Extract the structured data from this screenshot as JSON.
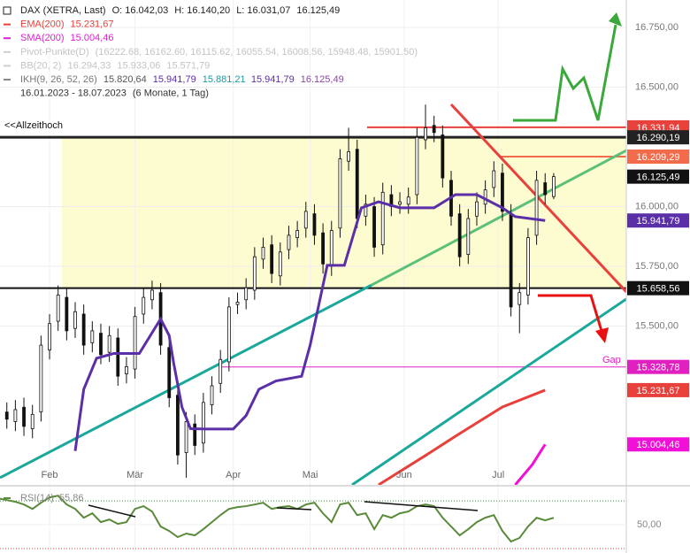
{
  "chart_data": {
    "type": "candlestick",
    "legend_rows": [
      {
        "swatch": "#222222",
        "items": [
          {
            "text": "DAX (XETRA, Last)",
            "color": "#222222"
          },
          {
            "text": "O: 16.042,03",
            "color": "#222222"
          },
          {
            "text": "H: 16.140,20",
            "color": "#222222"
          },
          {
            "text": "L: 16.031,07",
            "color": "#222222"
          },
          {
            "text": "16.125,49",
            "color": "#222222"
          }
        ]
      },
      {
        "swatch": "#e8403a",
        "items": [
          {
            "text": "EMA(200)",
            "color": "#e8403a"
          },
          {
            "text": "15.231,67",
            "color": "#e8403a"
          }
        ]
      },
      {
        "swatch": "#e020d0",
        "items": [
          {
            "text": "SMA(200)",
            "color": "#e020d0"
          },
          {
            "text": "15.004,46",
            "color": "#e020d0"
          }
        ]
      },
      {
        "swatch": "#cfcfcf",
        "items": [
          {
            "text": "Pivot-Punkte(D)",
            "color": "#c4c4c4"
          },
          {
            "text": "(16222.68, 16162.60, 16115.62, 16055.54, 16008.56, 15948.48, 15901.50)",
            "color": "#c4c4c4"
          }
        ]
      },
      {
        "swatch": "#cfcfcf",
        "items": [
          {
            "text": "BB(20, 2)",
            "color": "#c4c4c4"
          },
          {
            "text": "16.294,33",
            "color": "#c4c4c4"
          },
          {
            "text": "15.933,06",
            "color": "#c4c4c4"
          },
          {
            "text": "15.571,79",
            "color": "#c4c4c4"
          }
        ]
      },
      {
        "swatch": "#888888",
        "items": [
          {
            "text": "IKH(9, 26, 52, 26)",
            "color": "#777777"
          },
          {
            "text": "15.820,64",
            "color": "#555555"
          },
          {
            "text": "15.941,79",
            "color": "#5b2fa8"
          },
          {
            "text": "15.881,21",
            "color": "#1a9aa0"
          },
          {
            "text": "15.941,79",
            "color": "#5b2fa8"
          },
          {
            "text": "16.125,49",
            "color": "#8a4aa0"
          }
        ]
      },
      {
        "swatch": null,
        "items": [
          {
            "text": "16.01.2023 - 18.07.2023",
            "color": "#333333"
          },
          {
            "text": "(6 Monate, 1 Tag)",
            "color": "#333333"
          }
        ]
      }
    ],
    "x": [
      0,
      2,
      4,
      6,
      8,
      10,
      12,
      14,
      16,
      18,
      20,
      22,
      24,
      26,
      28,
      30,
      32,
      34,
      36,
      38,
      40,
      42,
      44,
      46,
      48,
      50,
      52,
      54,
      56,
      58,
      60,
      62,
      64,
      66,
      68,
      70,
      72,
      74,
      76,
      78,
      80,
      82,
      84,
      86,
      88,
      90,
      92,
      94,
      96,
      98,
      100,
      102,
      104,
      106,
      108,
      110,
      112,
      114,
      116,
      118,
      120,
      122,
      124,
      126,
      128,
      130
    ],
    "open": [
      15100,
      15140,
      15100,
      15160,
      15070,
      15140,
      15400,
      15520,
      15620,
      15490,
      15550,
      15430,
      15470,
      15390,
      15450,
      15300,
      15320,
      15550,
      15610,
      15640,
      15410,
      15210,
      14970,
      15090,
      15010,
      15170,
      15260,
      15350,
      15590,
      15610,
      15650,
      15780,
      15840,
      15710,
      15820,
      15870,
      15910,
      15970,
      15890,
      15750,
      15910,
      16190,
      16240,
      15960,
      16000,
      15840,
      16050,
      16010,
      16010,
      16050,
      16280,
      16340,
      16300,
      16110,
      15970,
      15800,
      15960,
      16010,
      16080,
      16140,
      15970,
      15590,
      15630,
      15880,
      16100,
      16042.03
    ],
    "high": [
      15170,
      15180,
      15190,
      15200,
      15170,
      15460,
      15550,
      15670,
      15660,
      15600,
      15590,
      15520,
      15510,
      15500,
      15490,
      15370,
      15580,
      15660,
      15690,
      15680,
      15450,
      15250,
      15140,
      15130,
      15220,
      15290,
      15400,
      15620,
      15640,
      15700,
      15830,
      15870,
      15880,
      15850,
      15920,
      15940,
      16020,
      16010,
      15930,
      15940,
      16240,
      16330,
      16280,
      16050,
      16040,
      16100,
      16090,
      16060,
      16080,
      16330,
      16427,
      16380,
      16340,
      16150,
      16010,
      15990,
      16060,
      16110,
      16190,
      16180,
      16010,
      15680,
      15910,
      16150,
      16140,
      16140.2
    ],
    "low": [
      15060,
      15070,
      15060,
      15040,
      15030,
      15100,
      15360,
      15480,
      15440,
      15450,
      15380,
      15390,
      15340,
      15350,
      15250,
      15260,
      15280,
      15510,
      15570,
      15380,
      15160,
      14920,
      14865,
      14960,
      14970,
      15130,
      15220,
      15310,
      15550,
      15570,
      15610,
      15740,
      15680,
      15670,
      15780,
      15830,
      15870,
      15840,
      15720,
      15710,
      15870,
      16150,
      15910,
      15920,
      15790,
      15800,
      15960,
      15970,
      15970,
      16010,
      16240,
      16270,
      16080,
      15920,
      15750,
      15760,
      15920,
      15970,
      16040,
      15940,
      15540,
      15470,
      15590,
      15840,
      16010,
      16031.07
    ],
    "close": [
      15130,
      15110,
      15150,
      15080,
      15130,
      15420,
      15510,
      15630,
      15480,
      15560,
      15420,
      15480,
      15380,
      15460,
      15290,
      15330,
      15540,
      15620,
      15650,
      15420,
      15200,
      14960,
      15100,
      15000,
      15180,
      15250,
      15360,
      15580,
      15600,
      15660,
      15790,
      15830,
      15720,
      15810,
      15880,
      15900,
      15980,
      15880,
      15760,
      15900,
      16200,
      16230,
      15950,
      16010,
      15830,
      16060,
      16000,
      16020,
      16040,
      16290,
      16330,
      16310,
      16120,
      15960,
      15790,
      15950,
      16020,
      16070,
      16150,
      15980,
      15580,
      15640,
      15870,
      16110,
      16050,
      16125.49
    ],
    "xlim": [
      0.4,
      147
    ],
    "xticks": [
      {
        "value": 12,
        "label": "Feb"
      },
      {
        "value": 32,
        "label": "Mär"
      },
      {
        "value": 55,
        "label": "Apr"
      },
      {
        "value": 73,
        "label": "Mai"
      },
      {
        "value": 95,
        "label": "Jun"
      },
      {
        "value": 117,
        "label": "Jul"
      }
    ],
    "ylim": [
      14835,
      16865
    ],
    "yticks": [
      {
        "value": 16750,
        "label": "16.750,00"
      },
      {
        "value": 16500,
        "label": "16.500,00"
      },
      {
        "value": 16000,
        "label": "16.000,00"
      },
      {
        "value": 15750,
        "label": "15.750,00"
      },
      {
        "value": 15500,
        "label": "15.500,00"
      }
    ],
    "series": [
      {
        "name": "IKH",
        "color": "#5b2fa8",
        "x": [
          18,
          20,
          23,
          27,
          33,
          38,
          40,
          41,
          43,
          45,
          49,
          55,
          58,
          61,
          65,
          71,
          73,
          77,
          81,
          85,
          89,
          94,
          98,
          102,
          107,
          112,
          118,
          121,
          128
        ],
        "values": [
          14977,
          15235,
          15365,
          15385,
          15385,
          15530,
          15460,
          15350,
          15160,
          15070,
          15069,
          15069,
          15125,
          15235,
          15270,
          15290,
          15420,
          15754,
          15754,
          15995,
          16020,
          15995,
          15995,
          15995,
          16050,
          16050,
          15995,
          15958,
          15941.79
        ]
      },
      {
        "name": "EMA(200)",
        "color": "#e8403a",
        "x": [
          89,
          100,
          108,
          118,
          128
        ],
        "values": [
          14835,
          14958,
          15050,
          15161,
          15231.67
        ]
      },
      {
        "name": "SMA(200)",
        "color": "#f010d8",
        "x": [
          121,
          125,
          128
        ],
        "values": [
          14835,
          14920,
          15004.46
        ]
      }
    ],
    "trendlines": [
      {
        "color": "#1aa89a",
        "x": [
          0.4,
          87.4
        ],
        "values": [
          14865,
          15672
        ]
      },
      {
        "color": "#5cc07a",
        "x": [
          87.4,
          147
        ],
        "values": [
          15672,
          16235
        ]
      },
      {
        "color": "#1aa89a",
        "x": [
          82.8,
          147
        ],
        "values": [
          14835,
          15613
        ]
      },
      {
        "color": "#e8403a",
        "x": [
          106,
          147
        ],
        "values": [
          16428,
          15643
        ]
      }
    ],
    "levels": [
      {
        "value": 16331.94,
        "label": "16.331,94",
        "color": "#e8403a"
      },
      {
        "value": 16290.19,
        "label": "16.290,19",
        "color": "#222222"
      },
      {
        "value": 16209.29,
        "label": "16.209,29",
        "color": "#f26b4b"
      },
      {
        "value": 16125.49,
        "label": "16.125,49",
        "color": "#111111"
      },
      {
        "value": 15941.79,
        "label": "15.941,79",
        "color": "#5b2fa8"
      },
      {
        "value": 15658.56,
        "label": "15.658,56",
        "color": "#111111"
      },
      {
        "value": 15328.78,
        "label": "15.328,78",
        "color": "#e020c0"
      },
      {
        "value": 15231.67,
        "label": "15.231,67",
        "color": "#e8403a"
      },
      {
        "value": 15004.46,
        "label": "15.004,46",
        "color": "#f010d8"
      }
    ],
    "annotations": [
      {
        "text": "<<Allzeithoch",
        "color": "#111111"
      },
      {
        "text": "Gap",
        "color": "#e020c0"
      }
    ],
    "rsi": {
      "name": "RSI(14)",
      "value_label": "55,86",
      "color": "#5a8a3a",
      "values": [
        72.2,
        70.7,
        69.3,
        67,
        63.3,
        68.5,
        73,
        74.4,
        67,
        63.3,
        55.9,
        59.6,
        52.2,
        54.4,
        50.7,
        52.2,
        63.3,
        65.6,
        61.1,
        48.5,
        44.8,
        39.6,
        42.6,
        41.1,
        46.3,
        52.2,
        58.1,
        63.3,
        64.8,
        65.6,
        67,
        68.5,
        63.3,
        64.8,
        65.6,
        63.3,
        67,
        68.5,
        59.6,
        52.2,
        67,
        68.5,
        58.1,
        59.6,
        46.3,
        58.1,
        55.9,
        59.6,
        61.1,
        65.6,
        67,
        65.6,
        55.9,
        48.5,
        41.1,
        46.3,
        52.2,
        55.9,
        58.1,
        44.8,
        35.9,
        38.9,
        48.5,
        55.9,
        53.7,
        55.86
      ],
      "ylim": [
        27,
        82
      ],
      "yticks": [
        {
          "value": 50,
          "label": "50,00"
        }
      ],
      "levels": [
        {
          "value": 70,
          "color": "#3a9a3a"
        },
        {
          "value": 30,
          "color": "#e04040"
        }
      ]
    }
  }
}
